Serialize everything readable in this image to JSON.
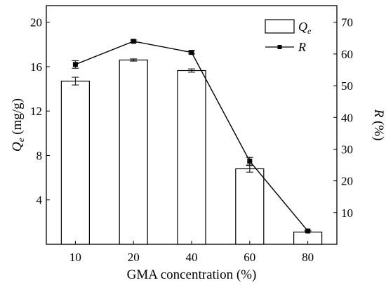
{
  "chart_data": {
    "type": "bar",
    "categories": [
      "10",
      "20",
      "40",
      "60",
      "80"
    ],
    "series": [
      {
        "name": "Qe",
        "kind": "bar",
        "axis": "left",
        "values": [
          14.7,
          16.6,
          15.65,
          6.8,
          1.1
        ],
        "errors": [
          0.35,
          0.1,
          0.15,
          0.3,
          0.0
        ]
      },
      {
        "name": "R",
        "kind": "line",
        "axis": "right",
        "values": [
          56.7,
          64.0,
          60.5,
          26.2,
          4.2
        ],
        "errors": [
          1.2,
          0.4,
          0.5,
          1.2,
          0.2
        ]
      }
    ],
    "xlabel": "GMA concentration (%)",
    "ylabel_left": {
      "main": "Q",
      "sub": "e",
      "unit": " (mg/g)"
    },
    "ylabel_right": {
      "main": "R",
      "unit": " (%)"
    },
    "ylim_left": [
      0,
      21.5
    ],
    "ylim_right": [
      0,
      75.25
    ],
    "yticks_left": [
      4,
      8,
      12,
      16,
      20
    ],
    "yticks_right": [
      10,
      20,
      30,
      40,
      50,
      60,
      70
    ],
    "legend": {
      "placement": "top-right",
      "items": [
        {
          "main": "Q",
          "sub": "e",
          "kind": "bar"
        },
        {
          "main": "R",
          "sub": "",
          "kind": "line"
        }
      ]
    },
    "grid": false,
    "colors": {
      "bar_fill": "#ffffff",
      "stroke": "#000000",
      "marker": "#000000"
    }
  }
}
